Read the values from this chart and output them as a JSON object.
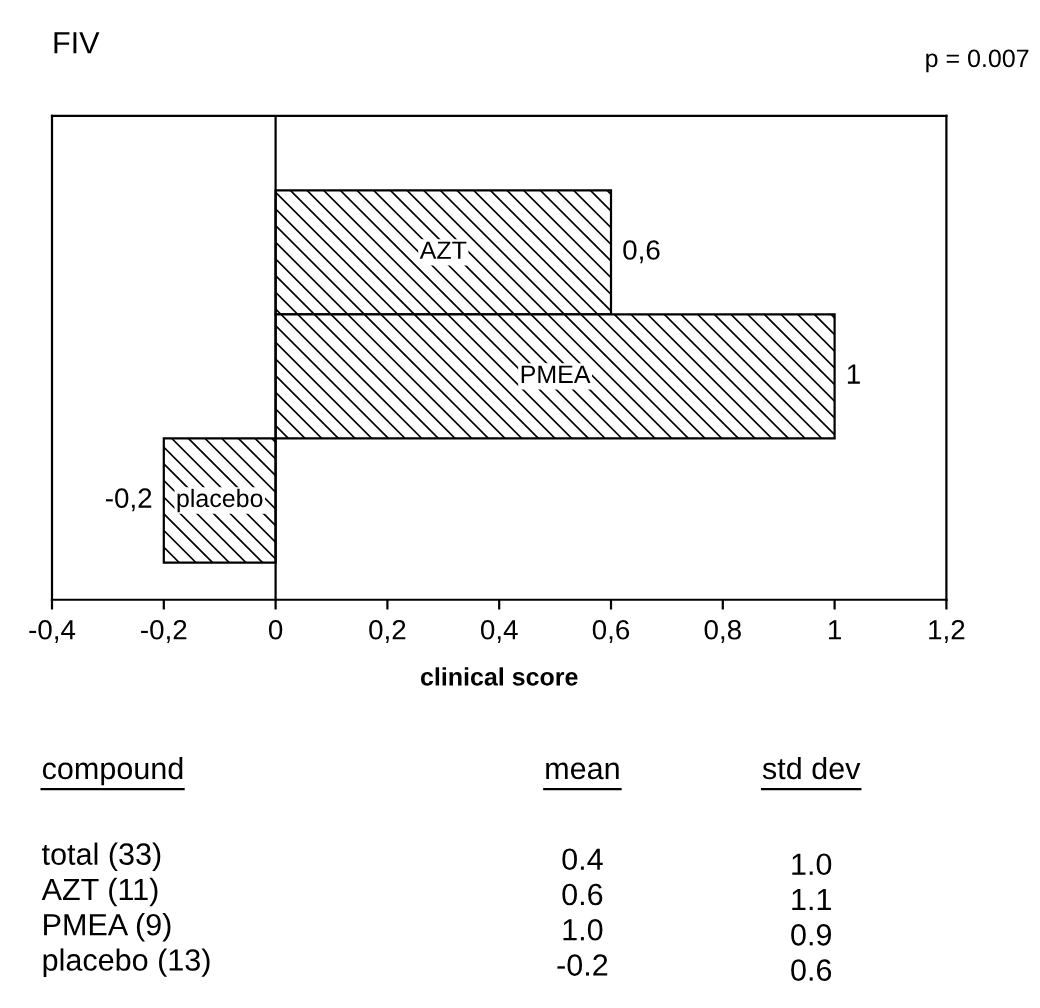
{
  "chart_data": {
    "type": "bar",
    "orientation": "horizontal",
    "title": "FIV",
    "xlabel": "clinical score",
    "categories": [
      "AZT",
      "PMEA",
      "placebo"
    ],
    "values": [
      0.6,
      1,
      -0.2
    ],
    "value_labels": [
      "0,6",
      "1",
      "-0,2"
    ],
    "color": "#000000",
    "xlim": [
      -0.4,
      1.2
    ],
    "xticks": [
      {
        "value": -0.4,
        "label": "-0,4"
      },
      {
        "value": -0.2,
        "label": "-0,2"
      },
      0,
      {
        "value": 0.2,
        "label": "0,2"
      },
      {
        "value": 0.4,
        "label": "0,4"
      },
      {
        "value": 0.6,
        "label": "0,6"
      },
      {
        "value": 0.8,
        "label": "0,8"
      },
      1,
      {
        "value": 1.2,
        "label": "1,2"
      }
    ],
    "ref_lines": [
      {
        "axis": "x",
        "value": 0
      }
    ],
    "grid": false,
    "annotations": [
      "p = 0.007",
      "compound",
      "mean",
      "std dev",
      "total (33)",
      "0.4",
      "1.0",
      "AZT (11)",
      "0.6",
      "1.1",
      "PMEA (9)",
      "1.0",
      "0.9",
      "placebo (13)",
      "-0.2",
      "0.6"
    ]
  }
}
